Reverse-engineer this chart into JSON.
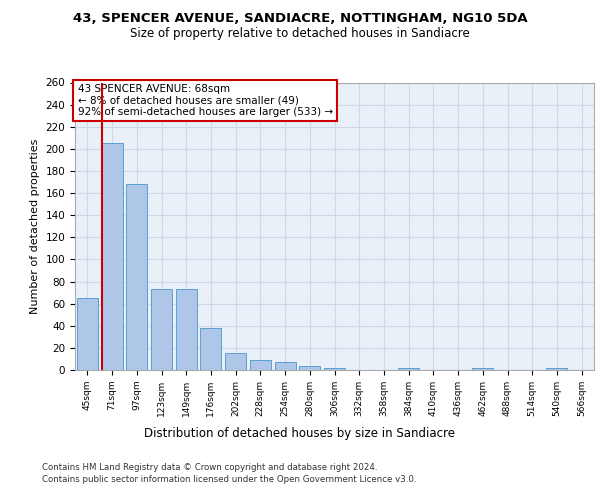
{
  "title1": "43, SPENCER AVENUE, SANDIACRE, NOTTINGHAM, NG10 5DA",
  "title2": "Size of property relative to detached houses in Sandiacre",
  "xlabel": "Distribution of detached houses by size in Sandiacre",
  "ylabel": "Number of detached properties",
  "footer1": "Contains HM Land Registry data © Crown copyright and database right 2024.",
  "footer2": "Contains public sector information licensed under the Open Government Licence v3.0.",
  "bar_labels": [
    "45sqm",
    "71sqm",
    "97sqm",
    "123sqm",
    "149sqm",
    "176sqm",
    "202sqm",
    "228sqm",
    "254sqm",
    "280sqm",
    "306sqm",
    "332sqm",
    "358sqm",
    "384sqm",
    "410sqm",
    "436sqm",
    "462sqm",
    "488sqm",
    "514sqm",
    "540sqm",
    "566sqm"
  ],
  "bar_values": [
    65,
    205,
    168,
    73,
    73,
    38,
    15,
    9,
    7,
    4,
    2,
    0,
    0,
    2,
    0,
    0,
    2,
    0,
    0,
    2,
    0
  ],
  "bar_color": "#aec6e8",
  "bar_edge_color": "#5a9fd4",
  "grid_color": "#d0d8e8",
  "background_color": "#eaf0f8",
  "annotation_text": "43 SPENCER AVENUE: 68sqm\n← 8% of detached houses are smaller (49)\n92% of semi-detached houses are larger (533) →",
  "annotation_box_color": "#ffffff",
  "annotation_box_edge": "#cc0000",
  "marker_line_color": "#cc0000",
  "ylim": [
    0,
    260
  ],
  "yticks": [
    0,
    20,
    40,
    60,
    80,
    100,
    120,
    140,
    160,
    180,
    200,
    220,
    240,
    260
  ]
}
